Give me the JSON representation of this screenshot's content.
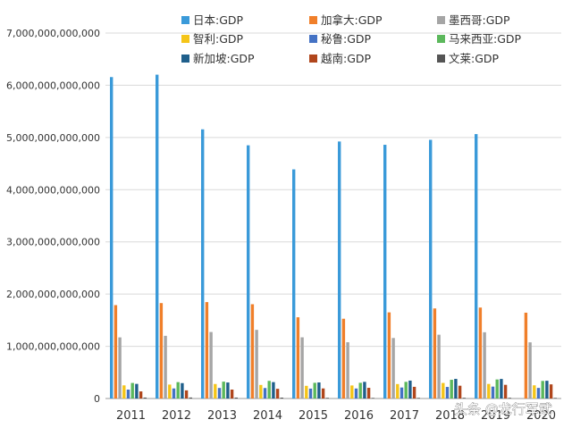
{
  "chart_data": {
    "type": "bar",
    "categories": [
      "2011",
      "2012",
      "2013",
      "2014",
      "2015",
      "2016",
      "2017",
      "2018",
      "2019",
      "2020"
    ],
    "ylim": [
      0,
      7000000000000
    ],
    "yticks": [
      0,
      1000000000000,
      2000000000000,
      3000000000000,
      4000000000000,
      5000000000000,
      6000000000000,
      7000000000000
    ],
    "ytick_labels": [
      "0",
      "1,000,000,000,000",
      "2,000,000,000,000",
      "3,000,000,000,000",
      "4,000,000,000,000",
      "5,000,000,000,000",
      "6,000,000,000,000",
      "7,000,000,000,000"
    ],
    "grid": true,
    "legend_position": "top",
    "series": [
      {
        "name": "日本:GDP",
        "color": "#3a9ad9",
        "values": [
          6157000000000,
          6203000000000,
          5156000000000,
          4850000000000,
          4389000000000,
          4923000000000,
          4860000000000,
          4955000000000,
          5065000000000,
          null
        ]
      },
      {
        "name": "加拿大:GDP",
        "color": "#f07f2a",
        "values": [
          1789000000000,
          1828000000000,
          1847000000000,
          1806000000000,
          1556000000000,
          1528000000000,
          1650000000000,
          1725000000000,
          1742000000000,
          1644000000000
        ]
      },
      {
        "name": "墨西哥:GDP",
        "color": "#a5a5a5",
        "values": [
          1171000000000,
          1201000000000,
          1274000000000,
          1315000000000,
          1172000000000,
          1078000000000,
          1159000000000,
          1222000000000,
          1269000000000,
          1076000000000
        ]
      },
      {
        "name": "智利:GDP",
        "color": "#f5c518",
        "values": [
          252000000000,
          267000000000,
          278000000000,
          260000000000,
          243000000000,
          250000000000,
          277000000000,
          298000000000,
          279000000000,
          253000000000
        ]
      },
      {
        "name": "秘鲁:GDP",
        "color": "#4472c4",
        "values": [
          171000000000,
          193000000000,
          202000000000,
          201000000000,
          190000000000,
          192000000000,
          211000000000,
          222000000000,
          228000000000,
          203000000000
        ]
      },
      {
        "name": "马来西亚:GDP",
        "color": "#5cb85c",
        "values": [
          298000000000,
          314000000000,
          323000000000,
          338000000000,
          301000000000,
          301000000000,
          319000000000,
          359000000000,
          365000000000,
          337000000000
        ]
      },
      {
        "name": "新加坡:GDP",
        "color": "#1f5f8b",
        "values": [
          280000000000,
          295000000000,
          307000000000,
          314000000000,
          308000000000,
          319000000000,
          343000000000,
          376000000000,
          375000000000,
          340000000000
        ]
      },
      {
        "name": "越南:GDP",
        "color": "#b0461c",
        "values": [
          136000000000,
          156000000000,
          171000000000,
          186000000000,
          193000000000,
          205000000000,
          224000000000,
          245000000000,
          262000000000,
          271000000000
        ]
      },
      {
        "name": "文莱:GDP",
        "color": "#555555",
        "values": [
          18500000000,
          19000000000,
          18100000000,
          17100000000,
          12900000000,
          11400000000,
          12100000000,
          13600000000,
          13500000000,
          12000000000
        ]
      }
    ]
  },
  "watermark": "头条 @龙行军武"
}
